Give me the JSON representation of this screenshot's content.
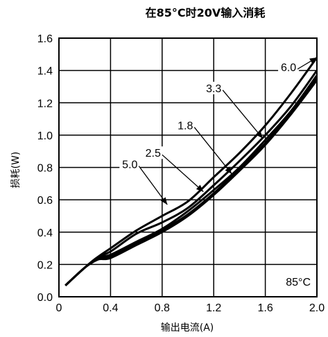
{
  "chart_data": {
    "type": "line",
    "title": "在85°C时20V输入消耗",
    "xlabel": "输出电流(A)",
    "ylabel": "损耗(W)",
    "xlim": [
      0,
      2.0
    ],
    "ylim": [
      0,
      1.6
    ],
    "x_ticks": [
      "0",
      "0.4",
      "0.8",
      "1.2",
      "1.6",
      "2.0"
    ],
    "y_ticks": [
      "0.0",
      "0.2",
      "0.4",
      "0.6",
      "0.8",
      "1.0",
      "1.2",
      "1.4",
      "1.6"
    ],
    "grid": true,
    "annotation": "85°C",
    "series": [
      {
        "name": "6.0",
        "x": [
          0.05,
          0.2,
          0.3,
          0.4,
          0.6,
          0.8,
          1.0,
          1.2,
          1.4,
          1.6,
          1.8,
          2.0
        ],
        "y": [
          0.07,
          0.18,
          0.245,
          0.3,
          0.41,
          0.5,
          0.59,
          0.74,
          0.89,
          1.06,
          1.26,
          1.48
        ]
      },
      {
        "name": "5.0",
        "x": [
          0.05,
          0.2,
          0.3,
          0.4,
          0.6,
          0.8,
          1.0,
          1.2,
          1.4,
          1.6,
          1.8,
          2.0
        ],
        "y": [
          0.07,
          0.18,
          0.245,
          0.28,
          0.39,
          0.46,
          0.55,
          0.69,
          0.84,
          1.0,
          1.18,
          1.4
        ]
      },
      {
        "name": "3.3",
        "x": [
          0.05,
          0.2,
          0.3,
          0.4,
          0.6,
          0.8,
          1.0,
          1.2,
          1.4,
          1.6,
          1.8,
          2.0
        ],
        "y": [
          0.07,
          0.18,
          0.24,
          0.26,
          0.34,
          0.42,
          0.53,
          0.66,
          0.8,
          0.97,
          1.15,
          1.37
        ]
      },
      {
        "name": "2.5",
        "x": [
          0.05,
          0.2,
          0.3,
          0.4,
          0.6,
          0.8,
          1.0,
          1.2,
          1.4,
          1.6,
          1.8,
          2.0
        ],
        "y": [
          0.07,
          0.18,
          0.23,
          0.25,
          0.33,
          0.41,
          0.51,
          0.64,
          0.79,
          0.95,
          1.14,
          1.35
        ]
      },
      {
        "name": "1.8",
        "x": [
          0.05,
          0.2,
          0.3,
          0.4,
          0.6,
          0.8,
          1.0,
          1.2,
          1.4,
          1.6,
          1.8,
          2.0
        ],
        "y": [
          0.07,
          0.18,
          0.23,
          0.24,
          0.32,
          0.4,
          0.5,
          0.63,
          0.78,
          0.94,
          1.13,
          1.34
        ]
      }
    ],
    "series_labels": [
      {
        "text": "6.0",
        "at": [
          1.78,
          1.4
        ],
        "pt": [
          2.0,
          1.48
        ]
      },
      {
        "text": "3.3",
        "at": [
          1.2,
          1.27
        ],
        "pt": [
          1.58,
          0.98
        ]
      },
      {
        "text": "1.8",
        "at": [
          0.98,
          1.04
        ],
        "pt": [
          1.34,
          0.76
        ]
      },
      {
        "text": "2.5",
        "at": [
          0.73,
          0.87
        ],
        "pt": [
          1.12,
          0.65
        ]
      },
      {
        "text": "5.0",
        "at": [
          0.55,
          0.8
        ],
        "pt": [
          0.84,
          0.57
        ]
      }
    ]
  }
}
